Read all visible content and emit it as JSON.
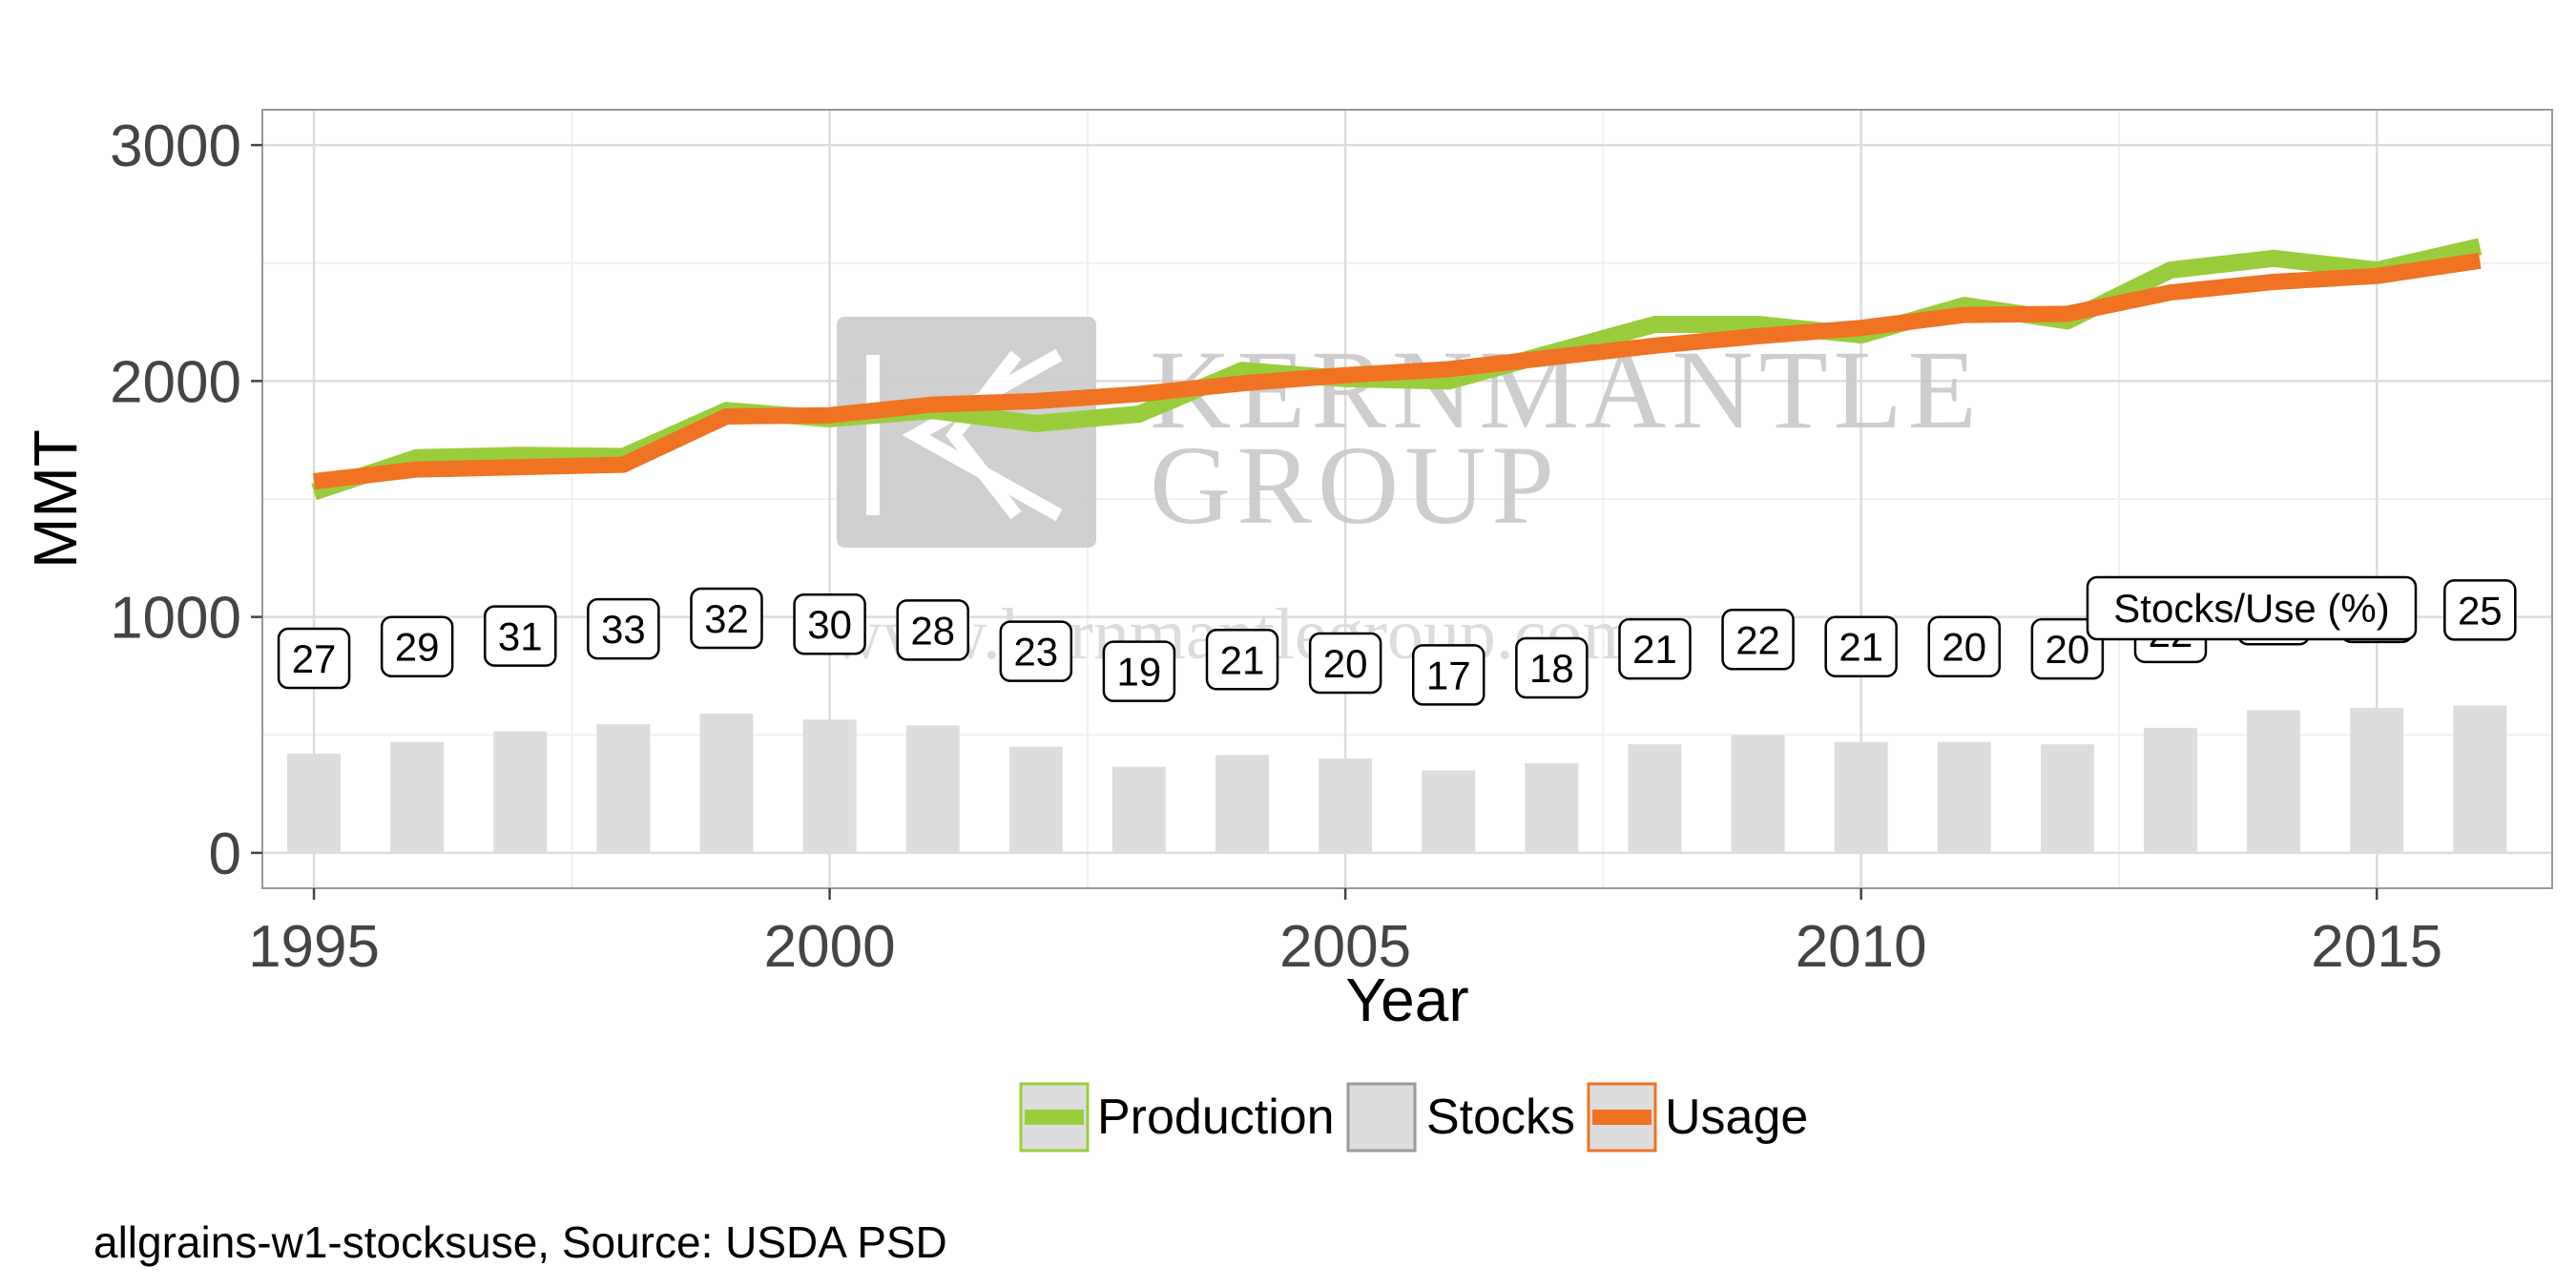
{
  "chart_data": {
    "type": "bar+line",
    "x": [
      1995,
      1996,
      1997,
      1998,
      1999,
      2000,
      2001,
      2002,
      2003,
      2004,
      2005,
      2006,
      2007,
      2008,
      2009,
      2010,
      2011,
      2012,
      2013,
      2014,
      2015,
      2016
    ],
    "series": [
      {
        "name": "Production",
        "type": "line",
        "color": "#9ACD3C",
        "values": [
          1530,
          1675,
          1685,
          1680,
          1875,
          1840,
          1875,
          1820,
          1860,
          2045,
          2010,
          2000,
          2120,
          2240,
          2240,
          2195,
          2320,
          2255,
          2470,
          2520,
          2470,
          2570
        ]
      },
      {
        "name": "Stocks",
        "type": "bar",
        "color": "#DDDDDD",
        "values": [
          420,
          470,
          515,
          545,
          590,
          565,
          540,
          450,
          365,
          415,
          400,
          350,
          380,
          460,
          500,
          470,
          470,
          460,
          530,
          605,
          615,
          625
        ]
      },
      {
        "name": "Usage",
        "type": "line",
        "color": "#F07223",
        "values": [
          1575,
          1625,
          1635,
          1645,
          1850,
          1855,
          1900,
          1915,
          1945,
          1990,
          2025,
          2050,
          2100,
          2150,
          2190,
          2225,
          2280,
          2285,
          2375,
          2420,
          2445,
          2510
        ]
      }
    ],
    "stocks_use_pct": [
      27,
      29,
      31,
      33,
      32,
      30,
      28,
      23,
      19,
      21,
      20,
      17,
      18,
      21,
      22,
      21,
      20,
      20,
      22,
      24,
      25,
      25
    ],
    "annotation": "Stocks/Use (%)",
    "xlabel": "Year",
    "ylabel": "MMT",
    "xlim": [
      1994.5,
      2016.7
    ],
    "ylim": [
      -150,
      3150
    ],
    "xticks": [
      "1995",
      "2000",
      "2005",
      "2010",
      "2015"
    ],
    "xtick_values": [
      1995,
      2000,
      2005,
      2010,
      2015
    ],
    "yticks": [
      "0",
      "1000",
      "2000",
      "3000"
    ],
    "ytick_values": [
      0,
      1000,
      2000,
      3000
    ],
    "grid": true,
    "legend_position": "bottom"
  },
  "legend": [
    {
      "label": "Production",
      "color": "#9ACD3C",
      "kind": "line"
    },
    {
      "label": "Stocks",
      "color": "#DDDDDD",
      "kind": "bar"
    },
    {
      "label": "Usage",
      "color": "#F07223",
      "kind": "line"
    }
  ],
  "watermark": {
    "line1": "KERNMANTLE",
    "line2": "GROUP",
    "url": "www.kernmantlegroup.com"
  },
  "caption": "allgrains-w1-stocksuse, Source: USDA PSD"
}
